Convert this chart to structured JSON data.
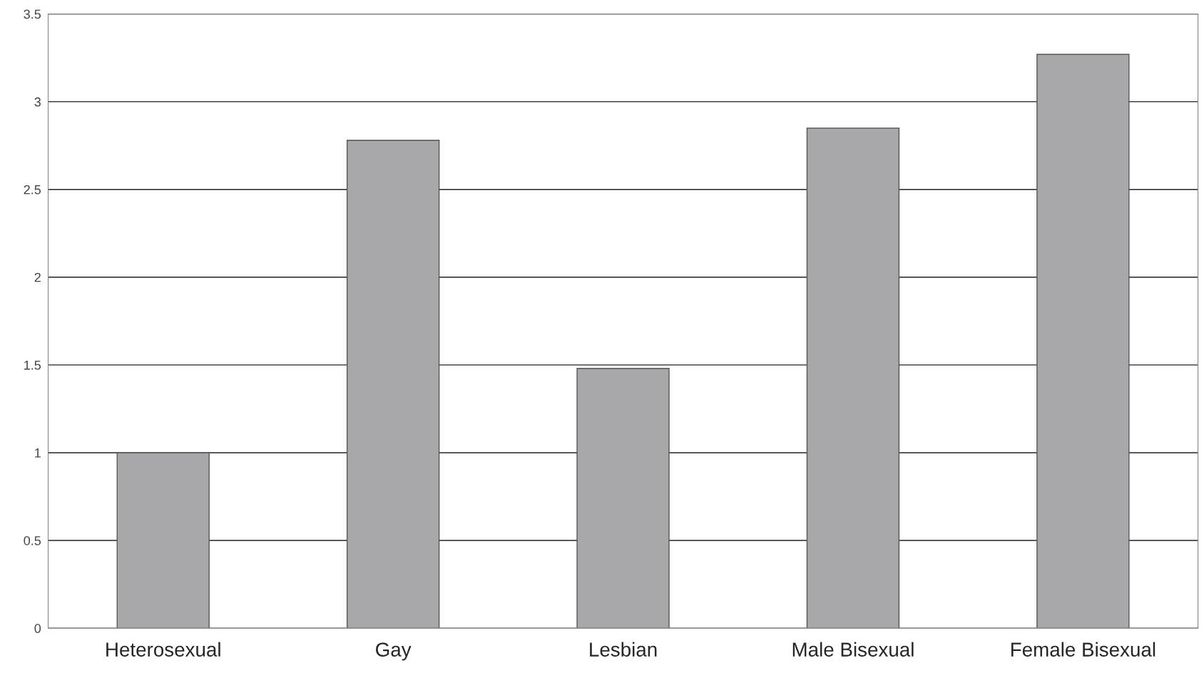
{
  "chart_data": {
    "type": "bar",
    "categories": [
      "Heterosexual",
      "Gay",
      "Lesbian",
      "Male Bisexual",
      "Female Bisexual"
    ],
    "values": [
      1.0,
      2.78,
      1.48,
      2.85,
      3.27
    ],
    "color": "#a8a8aa",
    "ylim": [
      0,
      3.5
    ],
    "yticks": [
      0,
      0.5,
      1,
      1.5,
      2,
      2.5,
      3,
      3.5
    ],
    "grid": "y"
  }
}
